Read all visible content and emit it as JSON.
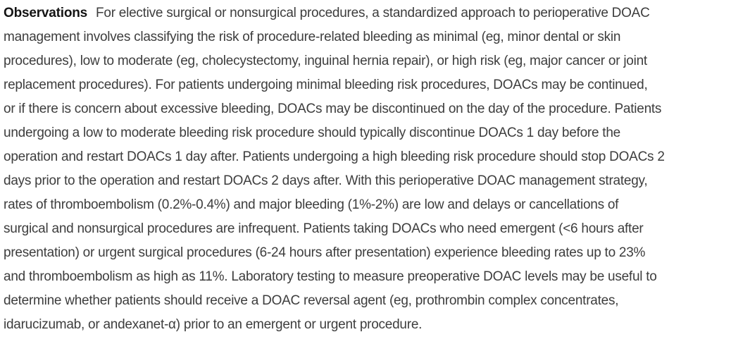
{
  "page": {
    "background_color": "#ffffff"
  },
  "abstract": {
    "section_label": "Observations",
    "label_color": "#141414",
    "body_color": "#3d3d3d",
    "lines": [
      "For elective surgical or nonsurgical procedures, a standardized approach to perioperative DOAC",
      "management involves classifying the risk of procedure-related bleeding as minimal (eg, minor dental or skin",
      "procedures), low to moderate (eg, cholecystectomy, inguinal hernia repair), or high risk (eg, major cancer or joint",
      "replacement procedures). For patients undergoing minimal bleeding risk procedures, DOACs may be continued,",
      "or if there is concern about excessive bleeding, DOACs may be discontinued on the day of the procedure. Patients",
      "undergoing a low to moderate bleeding risk procedure should typically discontinue DOACs 1 day before the",
      "operation and restart DOACs 1 day after. Patients undergoing a high bleeding risk procedure should stop DOACs 2",
      "days prior to the operation and restart DOACs 2 days after. With this perioperative DOAC management strategy,",
      "rates of thromboembolism (0.2%-0.4%) and major bleeding (1%-2%) are low and delays or cancellations of",
      "surgical and nonsurgical procedures are infrequent. Patients taking DOACs who need emergent (<6 hours after",
      "presentation) or urgent surgical procedures (6-24 hours after presentation) experience bleeding rates up to 23%",
      "and thromboembolism as high as 11%. Laboratory testing to measure preoperative DOAC levels may be useful to",
      "determine whether patients should receive a DOAC reversal agent (eg, prothrombin complex concentrates,",
      "idarucizumab, or andexanet-α) prior to an emergent or urgent procedure."
    ]
  }
}
